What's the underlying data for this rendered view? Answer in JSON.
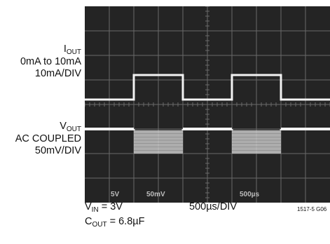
{
  "labels": {
    "iout": {
      "symbol": "I",
      "sub": "OUT",
      "line2": "0mA to 10mA",
      "line3": "10mA/DIV"
    },
    "vout": {
      "symbol": "V",
      "sub": "OUT",
      "line2": "AC COUPLED",
      "line3": "50mV/DIV"
    },
    "vin": {
      "symbol": "V",
      "sub": "IN",
      "value": " = 3V"
    },
    "cout": {
      "symbol": "C",
      "sub": "OUT",
      "value": " = 6.8µF"
    },
    "timebase": "500µs/DIV",
    "figure_id": "1517-5 G06"
  },
  "screen_readout": {
    "ch1": "5V",
    "ch2": "50mV",
    "timebase": "500µs"
  },
  "colors": {
    "screen": "#242424",
    "grid": "#6a6a6a",
    "trace": "#f2f2f2",
    "noise": "#cfcfcf",
    "page": "#ffffff"
  },
  "chart_data": {
    "type": "line",
    "title": "",
    "xlabel": "500µs/DIV",
    "divisions": {
      "x": 10,
      "y": 8
    },
    "series": [
      {
        "name": "IOUT",
        "scale": "10mA/DIV",
        "y_low_div": 4.2,
        "y_high_div": 5.2,
        "steps": [
          {
            "start_div": 0.0,
            "end_div": 2.0,
            "level": "low"
          },
          {
            "start_div": 2.0,
            "end_div": 4.0,
            "level": "high"
          },
          {
            "start_div": 4.0,
            "end_div": 6.0,
            "level": "low"
          },
          {
            "start_div": 6.0,
            "end_div": 8.0,
            "level": "high"
          },
          {
            "start_div": 8.0,
            "end_div": 10.0,
            "level": "low"
          }
        ]
      },
      {
        "name": "VOUT",
        "scale": "50mV/DIV",
        "coupling": "AC",
        "y_baseline_div": 3.0,
        "ripple_band_div": [
          2.0,
          2.95
        ],
        "steps": [
          {
            "start_div": 0.0,
            "end_div": 2.0,
            "state": "flat"
          },
          {
            "start_div": 2.0,
            "end_div": 4.0,
            "state": "ripple"
          },
          {
            "start_div": 4.0,
            "end_div": 6.0,
            "state": "flat"
          },
          {
            "start_div": 6.0,
            "end_div": 8.0,
            "state": "ripple"
          },
          {
            "start_div": 8.0,
            "end_div": 10.0,
            "state": "flat"
          }
        ]
      }
    ]
  }
}
